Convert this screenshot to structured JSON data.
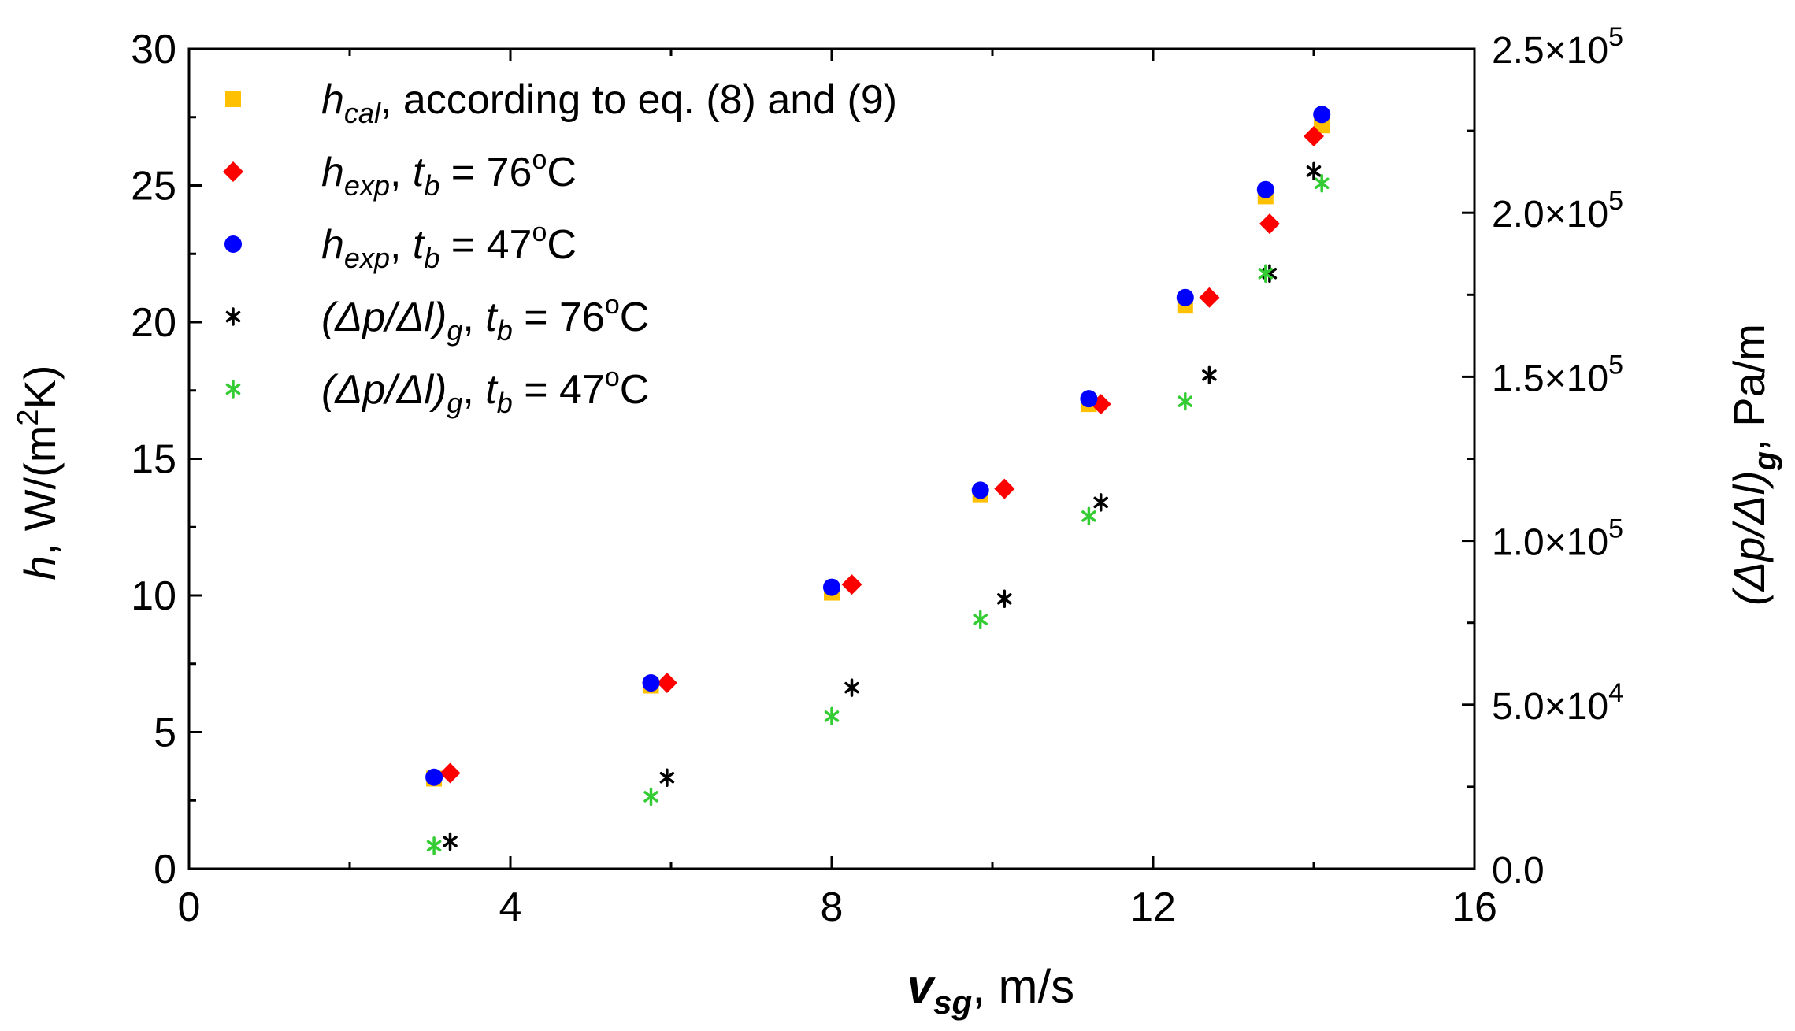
{
  "chart_data": {
    "type": "scatter",
    "xlabel": {
      "symbol": "v",
      "sub": "sg",
      "sep": ",",
      "unit": "m/s"
    },
    "ylabel_left": {
      "symbol": "h",
      "sep": ",",
      "unit_pre": "W/(m",
      "unit_sup": "2",
      "unit_post": "K)"
    },
    "ylabel_right": {
      "symbol": "(Δp/Δl)",
      "sub": "g",
      "sep": ",",
      "unit": "Pa/m"
    },
    "xlim": [
      0,
      16
    ],
    "ylim_left": [
      0,
      30
    ],
    "ylim_right": [
      0,
      250000
    ],
    "x_ticks": [
      {
        "value": 0,
        "label": "0"
      },
      {
        "value": 4,
        "label": "4"
      },
      {
        "value": 8,
        "label": "8"
      },
      {
        "value": 12,
        "label": "12"
      },
      {
        "value": 16,
        "label": "16"
      }
    ],
    "x_minor_ticks": [
      2,
      6,
      10,
      14
    ],
    "y_left_ticks": [
      {
        "value": 0,
        "label": "0"
      },
      {
        "value": 5,
        "label": "5"
      },
      {
        "value": 10,
        "label": "10"
      },
      {
        "value": 15,
        "label": "15"
      },
      {
        "value": 20,
        "label": "20"
      },
      {
        "value": 25,
        "label": "25"
      },
      {
        "value": 30,
        "label": "30"
      }
    ],
    "y_right_ticks": [
      {
        "value": 0,
        "mantissa": "0.0",
        "exp": ""
      },
      {
        "value": 50000,
        "mantissa": "5.0×10",
        "exp": "4"
      },
      {
        "value": 100000,
        "mantissa": "1.0×10",
        "exp": "5"
      },
      {
        "value": 150000,
        "mantissa": "1.5×10",
        "exp": "5"
      },
      {
        "value": 200000,
        "mantissa": "2.0×10",
        "exp": "5"
      },
      {
        "value": 250000,
        "mantissa": "2.5×10",
        "exp": "5"
      }
    ],
    "legend_position": "top-left",
    "series": [
      {
        "name": "hcal",
        "legend": {
          "sym": "h",
          "sub": "cal",
          "text": ",   according to eq. (8) and (9)"
        },
        "axis": "left",
        "marker": "square",
        "color": "#FFC000",
        "x": [
          3.05,
          5.75,
          8.0,
          9.85,
          11.2,
          12.4,
          13.4,
          14.1
        ],
        "y": [
          3.3,
          6.7,
          10.1,
          13.7,
          17.0,
          20.6,
          24.6,
          27.2
        ]
      },
      {
        "name": "hexp 76",
        "legend": {
          "sym": "h",
          "sub": "exp",
          "mid": ",    ",
          "sym2": "t",
          "sub2": "b",
          "text": " = 76",
          "sup": "o",
          "tail": "C"
        },
        "axis": "left",
        "marker": "diamond",
        "color": "#FF0000",
        "x": [
          3.25,
          5.95,
          8.25,
          10.15,
          11.35,
          12.7,
          13.45,
          14.0
        ],
        "y": [
          3.5,
          6.8,
          10.4,
          13.9,
          17.0,
          20.9,
          23.6,
          26.8
        ]
      },
      {
        "name": "hexp 47",
        "legend": {
          "sym": "h",
          "sub": "exp",
          "mid": ",    ",
          "sym2": "t",
          "sub2": "b",
          "text": " = 47",
          "sup": "o",
          "tail": "C"
        },
        "axis": "left",
        "marker": "circle",
        "color": "#0000FF",
        "x": [
          3.05,
          5.75,
          8.0,
          9.85,
          11.2,
          12.4,
          13.4,
          14.1
        ],
        "y": [
          3.35,
          6.8,
          10.3,
          13.85,
          17.2,
          20.9,
          24.85,
          27.6
        ]
      },
      {
        "name": "dp/dl 76",
        "legend": {
          "sym": "(Δp/Δl)",
          "sub": "g",
          "mid": ",   ",
          "sym2": "t",
          "sub2": "b",
          "text": " = 76",
          "sup": "o",
          "tail": "C"
        },
        "axis": "right",
        "marker": "asterisk",
        "color": "#000000",
        "x": [
          3.25,
          5.95,
          8.25,
          10.15,
          11.35,
          12.7,
          13.45,
          14.0
        ],
        "y": [
          8300,
          27800,
          55200,
          82300,
          111700,
          150500,
          181500,
          212700
        ]
      },
      {
        "name": "dp/dl 47",
        "legend": {
          "sym": "(Δp/Δl)",
          "sub": "g",
          "mid": ",   ",
          "sym2": "t",
          "sub2": "b",
          "text": " = 47",
          "sup": "o",
          "tail": "C"
        },
        "axis": "right",
        "marker": "asterisk",
        "color": "#33CC33",
        "x": [
          3.05,
          5.75,
          8.0,
          9.85,
          11.2,
          12.4,
          13.4,
          14.1
        ],
        "y": [
          7000,
          22000,
          46500,
          76000,
          107500,
          142500,
          181500,
          209000
        ]
      }
    ]
  }
}
